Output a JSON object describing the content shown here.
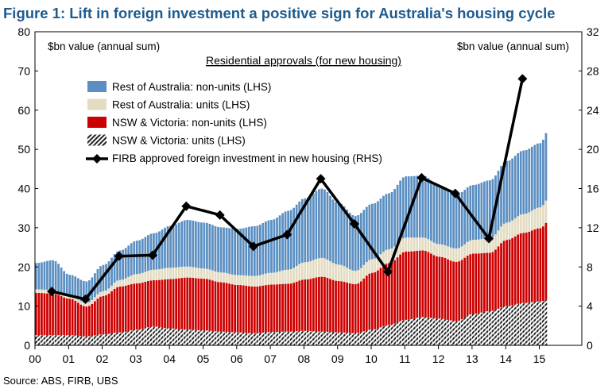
{
  "chart_data": {
    "type": "bar",
    "title": "Figure 1: Lift in foreign investment a positive sign for Australia's housing cycle",
    "subtitle": "Residential approvals (for new housing)",
    "left_unit": "$bn value (annual sum)",
    "right_unit": "$bn value (annual sum)",
    "source": "Source:  ABS, FIRB, UBS",
    "x_tick_labels": [
      "00",
      "01",
      "02",
      "03",
      "04",
      "05",
      "06",
      "07",
      "08",
      "09",
      "10",
      "11",
      "12",
      "13",
      "14",
      "15"
    ],
    "left_axis": {
      "min": 0,
      "max": 80,
      "step": 10
    },
    "right_axis": {
      "min": 0,
      "max": 32,
      "step": 4
    },
    "stacked": true,
    "months": 183,
    "start_year": 2000,
    "stack_series": [
      {
        "name": "NSW & Victoria: units (LHS)",
        "color": "#222222",
        "pattern": "hatch",
        "anchors": [
          [
            2000.0,
            2.6
          ],
          [
            2001.0,
            2.6
          ],
          [
            2001.5,
            2.3
          ],
          [
            2002.0,
            2.8
          ],
          [
            2002.5,
            3.3
          ],
          [
            2003.0,
            4.0
          ],
          [
            2003.5,
            4.8
          ],
          [
            2004.0,
            4.3
          ],
          [
            2004.5,
            4.0
          ],
          [
            2005.0,
            3.8
          ],
          [
            2005.5,
            3.5
          ],
          [
            2006.0,
            3.3
          ],
          [
            2006.5,
            3.1
          ],
          [
            2007.0,
            3.4
          ],
          [
            2007.5,
            3.5
          ],
          [
            2008.0,
            3.7
          ],
          [
            2008.5,
            3.5
          ],
          [
            2009.0,
            3.3
          ],
          [
            2009.5,
            3.1
          ],
          [
            2010.0,
            4.0
          ],
          [
            2010.5,
            5.2
          ],
          [
            2011.0,
            6.5
          ],
          [
            2011.5,
            7.2
          ],
          [
            2012.0,
            6.8
          ],
          [
            2012.5,
            6.2
          ],
          [
            2013.0,
            8.0
          ],
          [
            2013.5,
            8.7
          ],
          [
            2014.0,
            10.0
          ],
          [
            2014.5,
            10.8
          ],
          [
            2015.0,
            11.2
          ],
          [
            2015.25,
            11.7
          ]
        ]
      },
      {
        "name": "NSW & Victoria: non-units (LHS)",
        "color": "#cc0000",
        "pattern": "solid",
        "anchors": [
          [
            2000.0,
            10.8
          ],
          [
            2000.5,
            10.6
          ],
          [
            2001.0,
            9.3
          ],
          [
            2001.5,
            7.6
          ],
          [
            2002.0,
            9.8
          ],
          [
            2002.5,
            11.7
          ],
          [
            2003.0,
            11.8
          ],
          [
            2003.5,
            11.8
          ],
          [
            2004.0,
            12.6
          ],
          [
            2004.5,
            13.3
          ],
          [
            2005.0,
            13.2
          ],
          [
            2005.5,
            12.6
          ],
          [
            2006.0,
            12.1
          ],
          [
            2006.5,
            11.9
          ],
          [
            2007.0,
            12.1
          ],
          [
            2007.5,
            12.2
          ],
          [
            2008.0,
            13.1
          ],
          [
            2008.5,
            14.0
          ],
          [
            2009.0,
            13.1
          ],
          [
            2009.5,
            12.5
          ],
          [
            2010.0,
            14.5
          ],
          [
            2010.5,
            15.8
          ],
          [
            2011.0,
            17.4
          ],
          [
            2011.5,
            17.0
          ],
          [
            2012.0,
            15.8
          ],
          [
            2012.5,
            15.1
          ],
          [
            2013.0,
            15.4
          ],
          [
            2013.5,
            14.9
          ],
          [
            2014.0,
            16.9
          ],
          [
            2014.5,
            17.9
          ],
          [
            2015.0,
            18.7
          ],
          [
            2015.25,
            20.0
          ]
        ]
      },
      {
        "name": "Rest of Australia: units (LHS)",
        "color": "#e3dcc2",
        "pattern": "solid",
        "anchors": [
          [
            2000.0,
            0.9
          ],
          [
            2000.5,
            0.9
          ],
          [
            2001.0,
            0.7
          ],
          [
            2001.5,
            0.9
          ],
          [
            2002.0,
            1.2
          ],
          [
            2002.5,
            1.7
          ],
          [
            2003.0,
            2.4
          ],
          [
            2003.5,
            2.7
          ],
          [
            2004.0,
            2.9
          ],
          [
            2004.5,
            2.8
          ],
          [
            2005.0,
            2.6
          ],
          [
            2005.5,
            2.5
          ],
          [
            2006.0,
            2.5
          ],
          [
            2006.5,
            2.7
          ],
          [
            2007.0,
            3.0
          ],
          [
            2007.5,
            3.6
          ],
          [
            2008.0,
            4.4
          ],
          [
            2008.5,
            4.8
          ],
          [
            2009.0,
            4.2
          ],
          [
            2009.5,
            3.4
          ],
          [
            2010.0,
            3.5
          ],
          [
            2010.5,
            3.5
          ],
          [
            2011.0,
            3.6
          ],
          [
            2011.5,
            3.3
          ],
          [
            2012.0,
            3.2
          ],
          [
            2012.5,
            3.4
          ],
          [
            2013.0,
            3.5
          ],
          [
            2013.5,
            3.7
          ],
          [
            2014.0,
            4.4
          ],
          [
            2014.5,
            4.8
          ],
          [
            2015.0,
            5.3
          ],
          [
            2015.25,
            5.8
          ]
        ]
      },
      {
        "name": "Rest of Australia: non-units (LHS)",
        "color": "#5b8fc2",
        "pattern": "solid",
        "anchors": [
          [
            2000.0,
            6.7
          ],
          [
            2000.5,
            7.6
          ],
          [
            2001.0,
            5.4
          ],
          [
            2001.5,
            5.5
          ],
          [
            2002.0,
            6.7
          ],
          [
            2002.5,
            7.5
          ],
          [
            2003.0,
            8.5
          ],
          [
            2003.5,
            9.3
          ],
          [
            2004.0,
            10.7
          ],
          [
            2004.5,
            11.9
          ],
          [
            2005.0,
            11.7
          ],
          [
            2005.5,
            11.5
          ],
          [
            2006.0,
            11.8
          ],
          [
            2006.5,
            12.7
          ],
          [
            2007.0,
            13.5
          ],
          [
            2007.5,
            15.0
          ],
          [
            2008.0,
            16.3
          ],
          [
            2008.5,
            17.7
          ],
          [
            2009.0,
            15.7
          ],
          [
            2009.5,
            14.0
          ],
          [
            2010.0,
            14.1
          ],
          [
            2010.5,
            14.3
          ],
          [
            2011.0,
            15.6
          ],
          [
            2011.5,
            15.8
          ],
          [
            2012.0,
            15.0
          ],
          [
            2012.5,
            13.8
          ],
          [
            2013.0,
            14.0
          ],
          [
            2013.5,
            14.8
          ],
          [
            2014.0,
            15.7
          ],
          [
            2014.5,
            16.2
          ],
          [
            2015.0,
            16.4
          ],
          [
            2015.25,
            17.5
          ]
        ]
      }
    ],
    "line_series": {
      "name": "FIRB approved foreign investment in new housing (RHS)",
      "color": "#000000",
      "marker": "diamond",
      "axis": "right",
      "x": [
        2000.5,
        2001.5,
        2002.5,
        2003.5,
        2004.5,
        2005.5,
        2006.5,
        2007.5,
        2008.5,
        2009.5,
        2010.5,
        2011.5,
        2012.5,
        2013.5,
        2014.5
      ],
      "y": [
        5.5,
        4.7,
        9.1,
        9.2,
        14.2,
        13.3,
        10.1,
        11.3,
        17.0,
        12.4,
        7.5,
        17.1,
        15.5,
        10.9,
        27.2
      ]
    },
    "legend": {
      "placement": "upper-left",
      "order": [
        "Rest of Australia: non-units (LHS)",
        "Rest of Australia: units (LHS)",
        "NSW & Victoria: non-units (LHS)",
        "NSW & Victoria: units (LHS)",
        "FIRB approved foreign investment in new housing (RHS)"
      ]
    },
    "grid": false
  }
}
